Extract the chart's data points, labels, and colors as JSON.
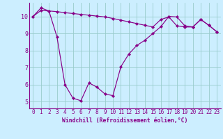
{
  "xlabel": "Windchill (Refroidissement éolien,°C)",
  "background_color": "#cceeff",
  "grid_color": "#99cccc",
  "line_color": "#880088",
  "spine_color": "#880088",
  "xlim": [
    -0.5,
    23.5
  ],
  "ylim": [
    4.6,
    10.8
  ],
  "yticks": [
    5,
    6,
    7,
    8,
    9,
    10
  ],
  "xticks": [
    0,
    1,
    2,
    3,
    4,
    5,
    6,
    7,
    8,
    9,
    10,
    11,
    12,
    13,
    14,
    15,
    16,
    17,
    18,
    19,
    20,
    21,
    22,
    23
  ],
  "line1_x": [
    0,
    1,
    2,
    3,
    4,
    5,
    6,
    7,
    8,
    9,
    10,
    11,
    12,
    13,
    14,
    15,
    16,
    17,
    18,
    19,
    20,
    21,
    22,
    23
  ],
  "line1_y": [
    10.0,
    10.35,
    10.32,
    10.28,
    10.22,
    10.17,
    10.12,
    10.07,
    10.02,
    9.97,
    9.88,
    9.78,
    9.68,
    9.58,
    9.48,
    9.38,
    9.82,
    9.97,
    9.45,
    9.38,
    9.38,
    9.82,
    9.48,
    9.1
  ],
  "line2_x": [
    0,
    1,
    2,
    3,
    4,
    5,
    6,
    7,
    8,
    9,
    10,
    11,
    12,
    13,
    14,
    15,
    16,
    17,
    18,
    19,
    20,
    21,
    22,
    23
  ],
  "line2_y": [
    10.0,
    10.5,
    10.32,
    8.8,
    6.0,
    5.2,
    5.05,
    6.1,
    5.85,
    5.45,
    5.35,
    7.05,
    7.8,
    8.3,
    8.6,
    9.0,
    9.4,
    10.0,
    9.97,
    9.45,
    9.38,
    9.82,
    9.48,
    9.1
  ],
  "tick_fontsize": 5.5,
  "xlabel_fontsize": 5.8,
  "marker_size": 2.2,
  "linewidth": 0.85
}
